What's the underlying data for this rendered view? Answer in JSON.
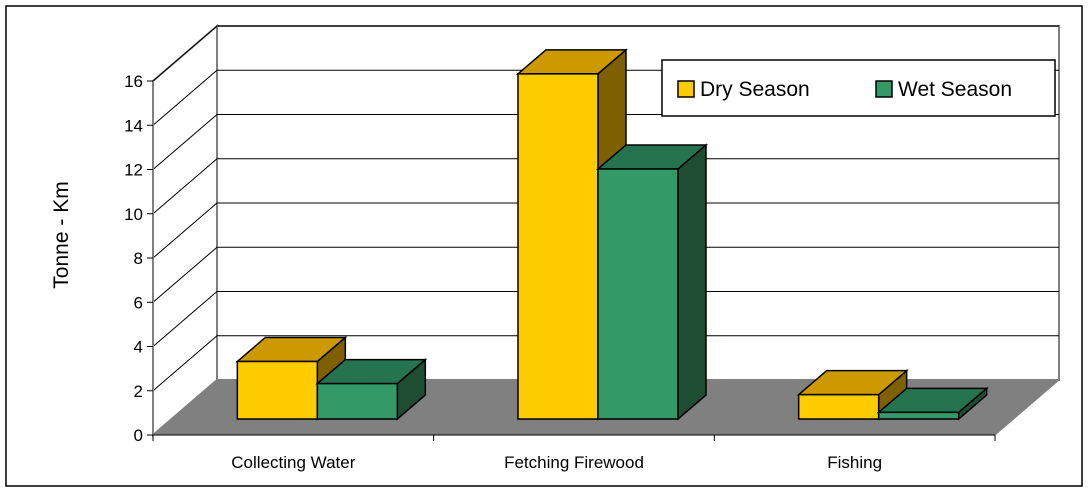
{
  "chart_data": {
    "type": "bar",
    "title": "",
    "xlabel": "",
    "ylabel": "Tonne - Km",
    "categories": [
      "Collecting Water",
      "Fetching Firewood",
      "Fishing"
    ],
    "series": [
      {
        "name": "Dry Season",
        "values": [
          2.6,
          15.6,
          1.1
        ]
      },
      {
        "name": "Wet Season",
        "values": [
          1.6,
          11.3,
          0.3
        ]
      }
    ],
    "ylim": [
      0,
      16
    ],
    "yticks": [
      0,
      2,
      4,
      6,
      8,
      10,
      12,
      14,
      16
    ],
    "grid": true,
    "legend_position": "top-right",
    "three_d": true,
    "colors": {
      "Dry Season": {
        "front": "#FFCC00",
        "top": "#CC9900",
        "side": "#7F6000"
      },
      "Wet Season": {
        "front": "#339966",
        "top": "#267350",
        "side": "#1E4D33"
      },
      "floor": "#808080",
      "grid": "#000000"
    }
  }
}
